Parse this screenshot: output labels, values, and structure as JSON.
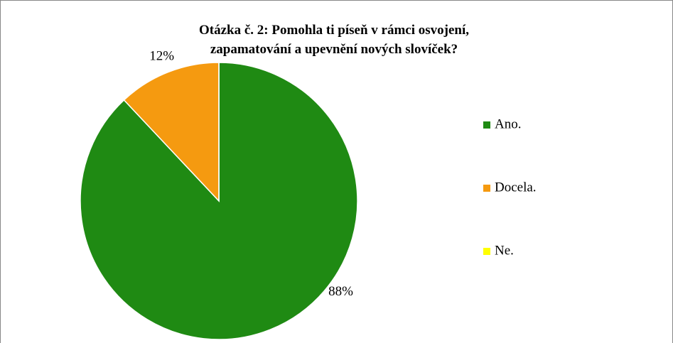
{
  "chart_data": {
    "type": "pie",
    "title": "Otázka č. 2: Pomohla ti píseň v rámci osvojení, zapamatování a upevnění nových slovíček?",
    "categories": [
      "Ano.",
      "Docela.",
      "Ne."
    ],
    "values": [
      88,
      12,
      0
    ],
    "value_labels": [
      "88%",
      "12%",
      null
    ],
    "colors": [
      "#1f8a13",
      "#f59a10",
      "#ffff00"
    ],
    "legend": "right"
  }
}
